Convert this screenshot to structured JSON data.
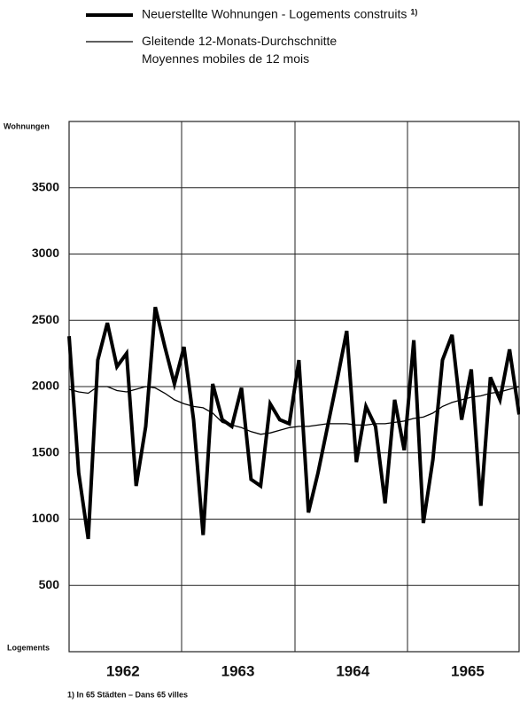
{
  "chart_data": {
    "type": "line",
    "y_label_top": "Wohnungen",
    "y_label_bottom": "Logements",
    "footnote_mark": "1)",
    "footnote": "1) In 65 Städten – Dans 65 villes",
    "categories": [
      null,
      null,
      null,
      null,
      null,
      null,
      "1962",
      null,
      null,
      null,
      null,
      null,
      null,
      null,
      null,
      null,
      null,
      null,
      "1963",
      null,
      null,
      null,
      null,
      null,
      null,
      null,
      null,
      null,
      null,
      null,
      "1964",
      null,
      null,
      null,
      null,
      null,
      null,
      null,
      null,
      null,
      null,
      null,
      "1965",
      null,
      null,
      null,
      null,
      null
    ],
    "series": [
      {
        "name": "Neuerstellte Wohnungen - Logements construits",
        "color": "#000000",
        "width": 4,
        "values": [
          2380,
          1350,
          850,
          2200,
          2480,
          2150,
          2250,
          1250,
          1700,
          2600,
          2300,
          2020,
          2300,
          1750,
          880,
          2020,
          1750,
          1700,
          1990,
          1300,
          1250,
          1870,
          1750,
          1720,
          2200,
          1050,
          1350,
          1700,
          2050,
          2420,
          1430,
          1850,
          1700,
          1120,
          1900,
          1520,
          2350,
          970,
          1450,
          2200,
          2390,
          1750,
          2130,
          1100,
          2070,
          1900,
          2280,
          1790
        ]
      },
      {
        "name": "Gleitende 12-Monats-Durchschnitte\nMoyennes mobiles de 12 mois",
        "color": "#000000",
        "width": 1.3,
        "values": [
          1980,
          1960,
          1950,
          2000,
          2000,
          1970,
          1960,
          1980,
          2000,
          1990,
          1950,
          1900,
          1870,
          1850,
          1840,
          1800,
          1730,
          1710,
          1690,
          1660,
          1640,
          1650,
          1670,
          1690,
          1700,
          1700,
          1710,
          1720,
          1720,
          1720,
          1710,
          1710,
          1720,
          1720,
          1730,
          1740,
          1760,
          1770,
          1800,
          1850,
          1880,
          1900,
          1920,
          1930,
          1950,
          1960,
          1980,
          2000
        ]
      }
    ],
    "ylim": [
      0,
      4000
    ],
    "yticks": [
      500,
      1000,
      1500,
      2000,
      2500,
      3000,
      3500
    ],
    "grid": true
  }
}
